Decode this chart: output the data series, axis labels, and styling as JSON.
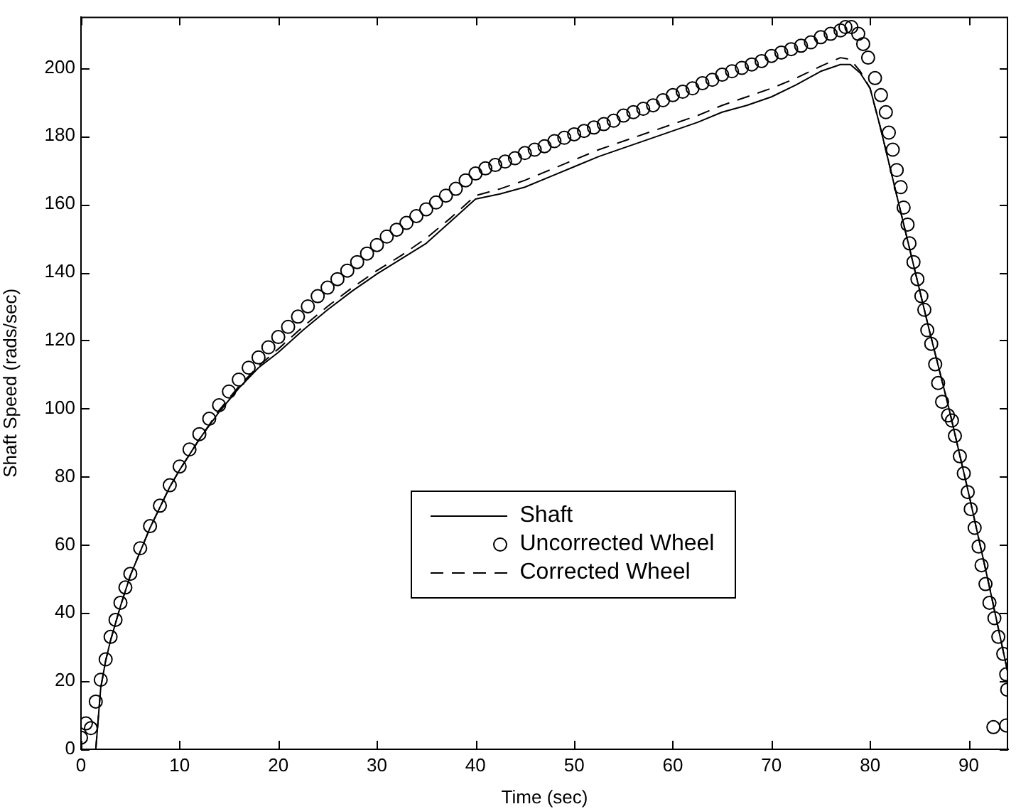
{
  "chart_data": {
    "type": "line",
    "xlabel": "Time (sec)",
    "ylabel": "Shaft Speed (rads/sec)",
    "xlim": [
      0,
      94
    ],
    "ylim": [
      0,
      215
    ],
    "xticks": [
      0,
      10,
      20,
      30,
      40,
      50,
      60,
      70,
      80,
      90
    ],
    "yticks": [
      0,
      20,
      40,
      60,
      80,
      100,
      120,
      140,
      160,
      180,
      200
    ],
    "legend": "center",
    "series": [
      {
        "name": "Shaft",
        "type": "line",
        "color": "#000000",
        "marker": "none",
        "line_style": "solid",
        "x": [
          1.5,
          2,
          2.5,
          3,
          4,
          5,
          6,
          7,
          8,
          9,
          10,
          12,
          14,
          16,
          18,
          20,
          22.5,
          25,
          27.5,
          30,
          32.5,
          35,
          37.5,
          40,
          42.5,
          45,
          47.5,
          50,
          52.5,
          55,
          57.5,
          60,
          62.5,
          65,
          67.5,
          70,
          72.5,
          75,
          77,
          78,
          79,
          80,
          81,
          82,
          84,
          86,
          88,
          90,
          92,
          94
        ],
        "values": [
          0,
          18,
          26,
          32,
          42,
          51,
          58,
          65,
          71,
          77,
          82,
          91,
          99,
          106,
          112,
          116.5,
          123,
          129,
          134.5,
          139.5,
          144,
          148.5,
          155,
          161.5,
          163,
          165,
          168,
          171,
          174,
          176.5,
          179,
          181.5,
          184,
          187,
          189,
          191.5,
          195,
          199,
          201,
          201,
          198.5,
          194,
          183,
          171,
          147,
          123,
          100,
          75,
          49,
          22
        ]
      },
      {
        "name": "Uncorrected Wheel",
        "type": "scatter",
        "color": "#000000",
        "marker": "circle",
        "x": [
          0,
          0.5,
          1,
          1.5,
          2,
          2.5,
          3,
          3.5,
          4,
          4.5,
          5,
          6,
          7,
          8,
          9,
          10,
          11,
          12,
          13,
          14,
          15,
          16,
          17,
          18,
          19,
          20,
          21,
          22,
          23,
          24,
          25,
          26,
          27,
          28,
          29,
          30,
          31,
          32,
          33,
          34,
          35,
          36,
          37,
          38,
          39,
          40,
          41,
          42,
          43,
          44,
          45,
          46,
          47,
          48,
          49,
          50,
          51,
          52,
          53,
          54,
          55,
          56,
          57,
          58,
          59,
          60,
          61,
          62,
          63,
          64,
          65,
          66,
          67,
          68,
          69,
          70,
          71,
          72,
          73,
          74,
          75,
          76,
          77,
          77.5,
          78.1,
          78.8,
          79.3,
          79.8,
          80.5,
          81.1,
          81.6,
          81.9,
          82.3,
          82.7,
          83.1,
          83.4,
          83.8,
          84,
          84.4,
          84.8,
          85.2,
          85.5,
          85.8,
          86.2,
          86.6,
          86.9,
          87.3,
          87.9,
          88.3,
          88.6,
          89.1,
          89.5,
          89.9,
          90.2,
          90.6,
          91,
          91.3,
          91.7,
          92.1,
          92.6,
          93,
          93.5,
          93.8,
          93.9,
          92.5,
          93.8
        ],
        "values": [
          3.4,
          7.6,
          6.2,
          14,
          20.4,
          26.4,
          33,
          38,
          43,
          47.5,
          51.5,
          59,
          65.5,
          71.5,
          77.5,
          83,
          88,
          92.5,
          97,
          101,
          105,
          108.5,
          112,
          115,
          118,
          121,
          124,
          127,
          130,
          133,
          135.5,
          138,
          140.5,
          143,
          145.5,
          148,
          150.5,
          152.5,
          154.5,
          156.5,
          158.5,
          160.5,
          162.5,
          164.5,
          167,
          169,
          170.5,
          171.5,
          172.5,
          173.5,
          175,
          176,
          177,
          178.5,
          179.5,
          180.5,
          181.5,
          182.5,
          183.5,
          184.5,
          186,
          187,
          188,
          189,
          190.5,
          192,
          193,
          194,
          195.5,
          196.5,
          198,
          199,
          200,
          201,
          202,
          203.5,
          204.5,
          205.5,
          206.5,
          207.5,
          209,
          210,
          211,
          212,
          212,
          210,
          207,
          203,
          197,
          192,
          187,
          181,
          176,
          170,
          165,
          159,
          154,
          148.5,
          143,
          138,
          133,
          129,
          123,
          119,
          113,
          107.5,
          102,
          98,
          96.5,
          92,
          86,
          81,
          75.5,
          70.5,
          65,
          59.5,
          54,
          48.5,
          43,
          38.5,
          33,
          28,
          22,
          17.5,
          6.5,
          7
        ]
      },
      {
        "name": "Corrected Wheel",
        "type": "line",
        "color": "#000000",
        "marker": "none",
        "line_style": "dashed",
        "x": [
          1.5,
          2,
          2.5,
          3,
          4,
          5,
          6,
          7,
          8,
          9,
          10,
          12,
          14,
          16,
          18,
          20,
          22.5,
          25,
          27.5,
          30,
          32.5,
          35,
          37.5,
          40,
          42.5,
          45,
          47.5,
          50,
          52.5,
          55,
          57.5,
          60,
          62.5,
          65,
          67.5,
          70,
          72.5,
          75,
          77,
          78,
          79,
          80,
          81,
          82,
          84,
          86,
          88,
          90,
          92,
          94
        ],
        "values": [
          0,
          18,
          26,
          32,
          42,
          51,
          58,
          65,
          71,
          77,
          82,
          91,
          99.5,
          106.5,
          112.5,
          117.5,
          124,
          130,
          135.5,
          140.5,
          145,
          150,
          156,
          162.5,
          164.5,
          167,
          170,
          173,
          176,
          178.5,
          181,
          183.5,
          186,
          189,
          191.5,
          194,
          197,
          200.5,
          203,
          202.5,
          199,
          194,
          183,
          171,
          147,
          123,
          100,
          75,
          49,
          22
        ]
      }
    ]
  }
}
